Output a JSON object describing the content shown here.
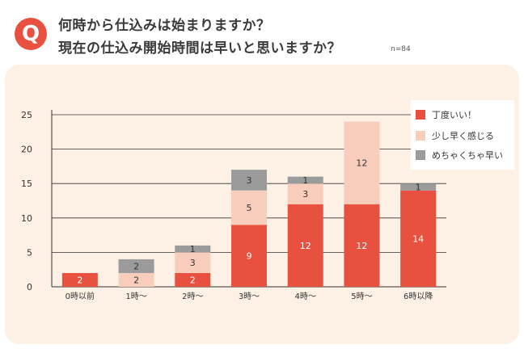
{
  "header": {
    "badge": "Q",
    "question_line1": "何時から仕込みは始まりますか？",
    "question_line2": "現在の仕込み開始時間は早いと思いますか？",
    "sample_size": "n=84"
  },
  "colors": {
    "accent": "#e8513f",
    "panel_bg": "#fdf1e6"
  },
  "chart_data": {
    "type": "bar",
    "stacked": true,
    "categories": [
      "0時以前",
      "1時〜",
      "2時〜",
      "3時〜",
      "4時〜",
      "5時〜",
      "6時以降"
    ],
    "series": [
      {
        "name": "丁度いい！",
        "color": "#e8513f",
        "text_color": "#ffffff",
        "values": [
          2,
          0,
          2,
          9,
          12,
          12,
          14
        ]
      },
      {
        "name": "少し早く感じる",
        "color": "#f8cdbc",
        "text_color": "#333333",
        "values": [
          0,
          2,
          3,
          5,
          3,
          12,
          0
        ]
      },
      {
        "name": "めちゃくちゃ早い",
        "color": "#9b9b9b",
        "text_color": "#333333",
        "values": [
          0,
          2,
          1,
          3,
          1,
          0,
          1
        ]
      }
    ],
    "y_ticks": [
      0,
      5,
      10,
      15,
      20,
      25
    ],
    "ylim": [
      0,
      25
    ],
    "grid": true,
    "legend_position": "top-right"
  }
}
